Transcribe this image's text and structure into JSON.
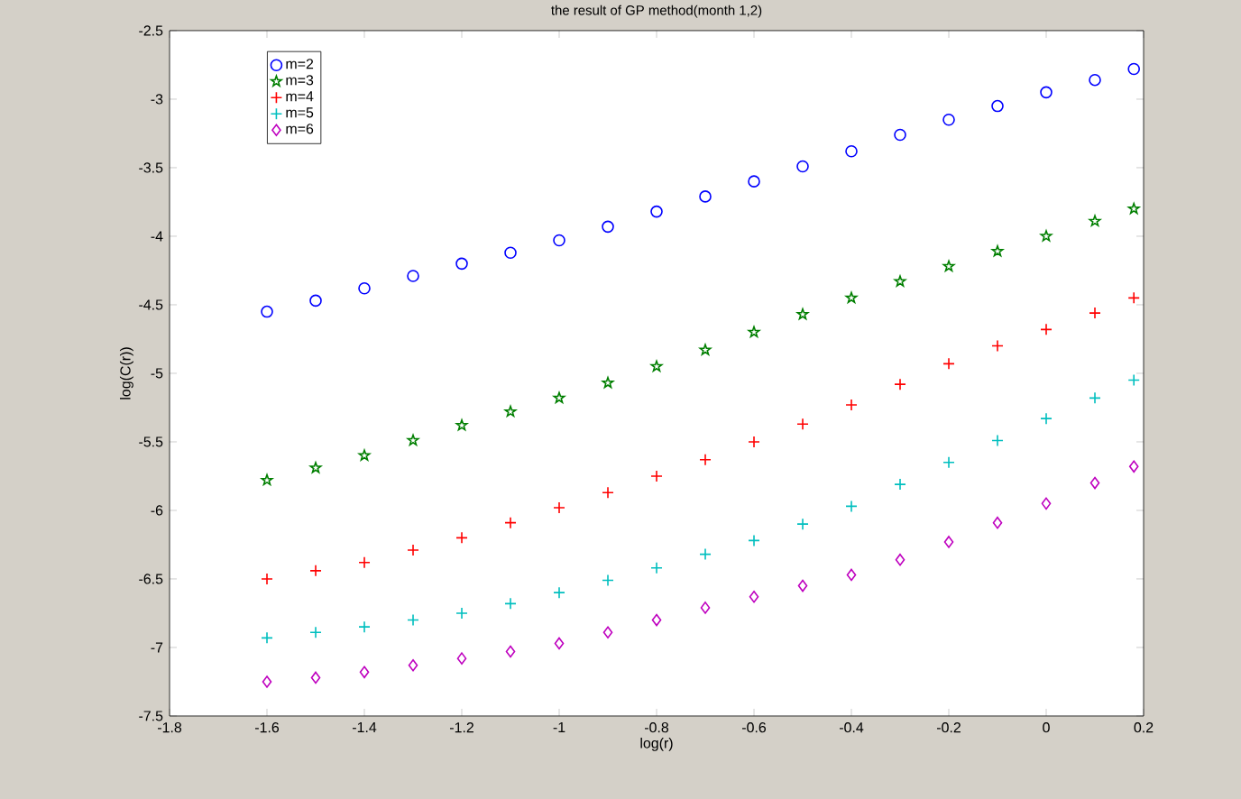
{
  "chart_data": {
    "type": "scatter",
    "title": "the result of GP method(month 1,2)",
    "xlabel": "log(r)",
    "ylabel": "log(C(r))",
    "xlim": [
      -1.8,
      0.2
    ],
    "ylim": [
      -7.5,
      -2.5
    ],
    "xticks": [
      -1.8,
      -1.6,
      -1.4,
      -1.2,
      -1,
      -0.8,
      -0.6,
      -0.4,
      -0.2,
      0,
      0.2
    ],
    "yticks": [
      -7.5,
      -7,
      -6.5,
      -6,
      -5.5,
      -5,
      -4.5,
      -4,
      -3.5,
      -3,
      -2.5
    ],
    "grid": false,
    "legend": "top left",
    "x": [
      -1.6,
      -1.5,
      -1.4,
      -1.3,
      -1.2,
      -1.1,
      -1.0,
      -0.9,
      -0.8,
      -0.7,
      -0.6,
      -0.5,
      -0.4,
      -0.3,
      -0.2,
      -0.1,
      0.0,
      0.1,
      0.18
    ],
    "series": [
      {
        "name": "m=2",
        "color": "#0000ff",
        "marker": "circle",
        "values": [
          -4.55,
          -4.47,
          -4.38,
          -4.29,
          -4.2,
          -4.12,
          -4.03,
          -3.93,
          -3.82,
          -3.71,
          -3.6,
          -3.49,
          -3.38,
          -3.26,
          -3.15,
          -3.05,
          -2.95,
          -2.86,
          -2.78
        ]
      },
      {
        "name": "m=3",
        "color": "#007f00",
        "marker": "star",
        "values": [
          -5.78,
          -5.69,
          -5.6,
          -5.49,
          -5.38,
          -5.28,
          -5.18,
          -5.07,
          -4.95,
          -4.83,
          -4.7,
          -4.57,
          -4.45,
          -4.33,
          -4.22,
          -4.11,
          -4.0,
          -3.89,
          -3.8
        ]
      },
      {
        "name": "m=4",
        "color": "#ff0000",
        "marker": "cross",
        "values": [
          -6.5,
          -6.44,
          -6.38,
          -6.29,
          -6.2,
          -6.09,
          -5.98,
          -5.87,
          -5.75,
          -5.63,
          -5.5,
          -5.37,
          -5.23,
          -5.08,
          -4.93,
          -4.8,
          -4.68,
          -4.56,
          -4.45
        ]
      },
      {
        "name": "m=5",
        "color": "#00bfbf",
        "marker": "cross",
        "values": [
          -6.93,
          -6.89,
          -6.85,
          -6.8,
          -6.75,
          -6.68,
          -6.6,
          -6.51,
          -6.42,
          -6.32,
          -6.22,
          -6.1,
          -5.97,
          -5.81,
          -5.65,
          -5.49,
          -5.33,
          -5.18,
          -5.05
        ]
      },
      {
        "name": "m=6",
        "color": "#bf00bf",
        "marker": "diamond",
        "values": [
          -7.25,
          -7.22,
          -7.18,
          -7.13,
          -7.08,
          -7.03,
          -6.97,
          -6.89,
          -6.8,
          -6.71,
          -6.63,
          -6.55,
          -6.47,
          -6.36,
          -6.23,
          -6.09,
          -5.95,
          -5.8,
          -5.68
        ]
      }
    ]
  }
}
